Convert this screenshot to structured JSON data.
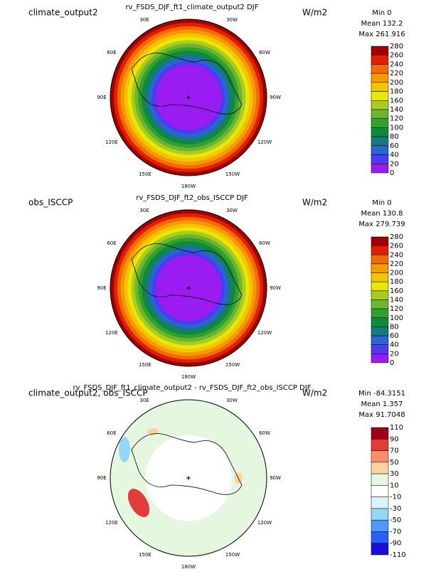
{
  "lon_labels": [
    "30E",
    "30W",
    "60E",
    "60W",
    "90E",
    "90W",
    "120E",
    "120W",
    "150E",
    "150W",
    "180W"
  ],
  "panels": [
    {
      "left_label": "climate_output2",
      "title": "rv_FSDS_DJF_ft1_climate_output2  DJF",
      "units": "W/m2",
      "stats": [
        "Min 0",
        "Mean 132.2",
        "Max 261.916"
      ],
      "levels": [
        280,
        260,
        240,
        220,
        200,
        180,
        160,
        140,
        120,
        100,
        80,
        60,
        40,
        20,
        0
      ],
      "colors": [
        "#a00000",
        "#e01e00",
        "#f56a00",
        "#f59a00",
        "#f5c400",
        "#e8e800",
        "#a8cc20",
        "#6db52d",
        "#2ea12e",
        "#108a3a",
        "#157a7f",
        "#2a62d8",
        "#4b3cf0",
        "#9a1cf0"
      ]
    },
    {
      "left_label": "obs_ISCCP",
      "title": "rv_FSDS_DJF_ft2_obs_ISCCP  DJF",
      "units": "W/m2",
      "stats": [
        "Min 0",
        "Mean 130.8",
        "Max 279.739"
      ],
      "levels": [
        280,
        260,
        240,
        220,
        200,
        180,
        160,
        140,
        120,
        100,
        80,
        60,
        40,
        20,
        0
      ],
      "colors": [
        "#a00000",
        "#e01e00",
        "#f56a00",
        "#f59a00",
        "#f5c400",
        "#e8e800",
        "#a8cc20",
        "#6db52d",
        "#2ea12e",
        "#108a3a",
        "#157a7f",
        "#2a62d8",
        "#4b3cf0",
        "#9a1cf0"
      ]
    },
    {
      "left_label": "climate_output2, obs_ISCCP",
      "title": "rv_FSDS_DJF_ft1_climate_output2 - rv_FSDS_DJF_ft2_obs_ISCCP  DJF",
      "units": "W/m2",
      "stats": [
        "Min -84.3151",
        "Mean 1.357",
        "Max 91.7048"
      ],
      "levels": [
        110,
        90,
        70,
        50,
        30,
        10,
        -10,
        -30,
        -50,
        -70,
        -90,
        -110
      ],
      "colors": [
        "#a00018",
        "#e33a3a",
        "#f7906a",
        "#fdd4a0",
        "#e6f7e0",
        "#ffffff",
        "#d9f5fb",
        "#93d7f7",
        "#4a9bf7",
        "#2f5ef7",
        "#1a0fd6"
      ]
    }
  ]
}
